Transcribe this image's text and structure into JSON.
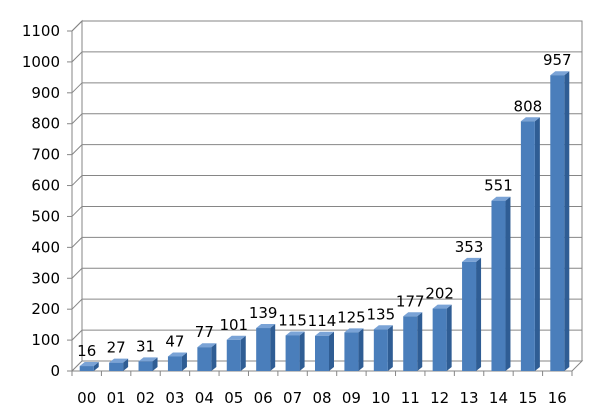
{
  "chart_data": {
    "type": "bar",
    "title": "",
    "xlabel": "",
    "ylabel": "",
    "categories": [
      "00",
      "01",
      "02",
      "03",
      "04",
      "05",
      "06",
      "07",
      "08",
      "09",
      "10",
      "11",
      "12",
      "13",
      "14",
      "15",
      "16"
    ],
    "values": [
      16,
      27,
      31,
      47,
      77,
      101,
      139,
      115,
      114,
      125,
      135,
      177,
      202,
      353,
      551,
      808,
      957
    ],
    "data_labels": [
      "16",
      "27",
      "31",
      "47",
      "77",
      "101",
      "139",
      "115",
      "114",
      "125",
      "135",
      "177",
      "202",
      "353",
      "551",
      "808",
      "957"
    ],
    "ylim": [
      0,
      1100
    ],
    "yticks": [
      0,
      100,
      200,
      300,
      400,
      500,
      600,
      700,
      800,
      900,
      1000,
      1100
    ],
    "grid": true,
    "legend": "none",
    "style": "3d-bar",
    "colors": {
      "bar_front": "#4a7ebb",
      "bar_side": "#2f5d94",
      "bar_top": "#7aa3d6",
      "grid": "#868686",
      "axis": "#868686"
    }
  }
}
